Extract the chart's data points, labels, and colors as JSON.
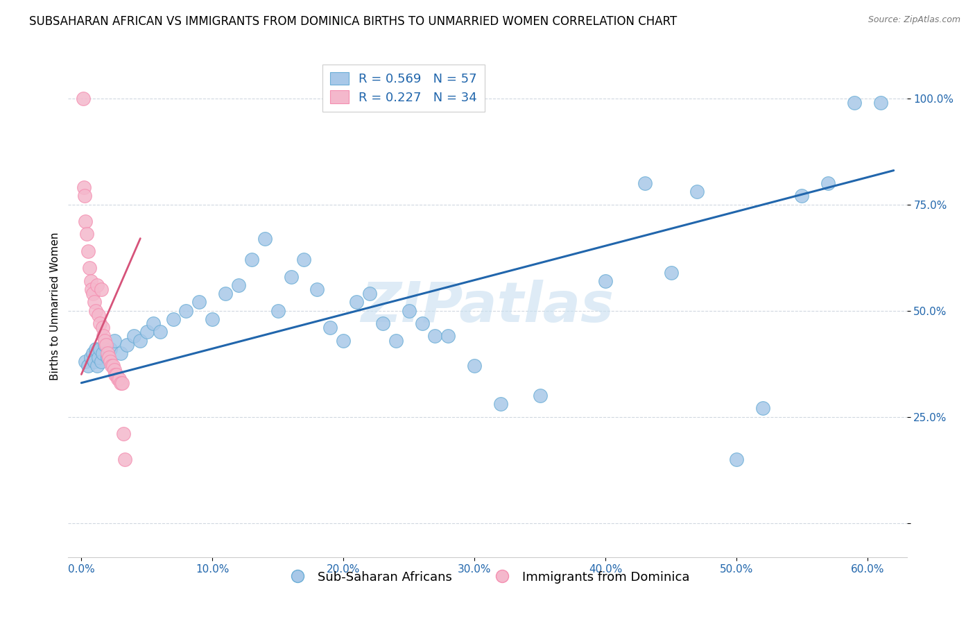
{
  "title": "SUBSAHARAN AFRICAN VS IMMIGRANTS FROM DOMINICA BIRTHS TO UNMARRIED WOMEN CORRELATION CHART",
  "source": "Source: ZipAtlas.com",
  "ylabel": "Births to Unmarried Women",
  "x_ticks": [
    0.0,
    10.0,
    20.0,
    30.0,
    40.0,
    50.0,
    60.0
  ],
  "y_ticks": [
    0.0,
    25.0,
    50.0,
    75.0,
    100.0
  ],
  "x_tick_labels": [
    "0.0%",
    "10.0%",
    "20.0%",
    "30.0%",
    "40.0%",
    "50.0%",
    "60.0%"
  ],
  "y_tick_labels": [
    "",
    "25.0%",
    "50.0%",
    "75.0%",
    "100.0%"
  ],
  "xlim": [
    -1.0,
    63.0
  ],
  "ylim": [
    -8.0,
    110.0
  ],
  "blue_color": "#a8c8e8",
  "blue_edge_color": "#6baed6",
  "pink_color": "#f4b8cc",
  "pink_edge_color": "#f48fb1",
  "blue_line_color": "#2166ac",
  "pink_line_color": "#d6537a",
  "legend_r1": "R = 0.569",
  "legend_n1": "N = 57",
  "legend_r2": "R = 0.227",
  "legend_n2": "N = 34",
  "legend_text_color": "#2166ac",
  "watermark": "ZIPatlas",
  "blue_scatter_x": [
    0.3,
    0.5,
    0.7,
    0.9,
    1.0,
    1.1,
    1.2,
    1.3,
    1.4,
    1.5,
    1.6,
    1.8,
    2.0,
    2.2,
    2.5,
    3.0,
    3.5,
    4.0,
    4.5,
    5.0,
    5.5,
    6.0,
    7.0,
    8.0,
    9.0,
    10.0,
    11.0,
    12.0,
    13.0,
    14.0,
    15.0,
    16.0,
    17.0,
    18.0,
    19.0,
    20.0,
    21.0,
    22.0,
    23.0,
    24.0,
    25.0,
    26.0,
    27.0,
    28.0,
    30.0,
    32.0,
    35.0,
    40.0,
    43.0,
    45.0,
    47.0,
    50.0,
    52.0,
    55.0,
    57.0,
    59.0,
    61.0
  ],
  "blue_scatter_y": [
    38.0,
    37.0,
    39.0,
    40.0,
    38.0,
    41.0,
    37.0,
    39.0,
    41.0,
    38.0,
    40.0,
    42.0,
    39.0,
    41.0,
    43.0,
    40.0,
    42.0,
    44.0,
    43.0,
    45.0,
    47.0,
    45.0,
    48.0,
    50.0,
    52.0,
    48.0,
    54.0,
    56.0,
    62.0,
    67.0,
    50.0,
    58.0,
    62.0,
    55.0,
    46.0,
    43.0,
    52.0,
    54.0,
    47.0,
    43.0,
    50.0,
    47.0,
    44.0,
    44.0,
    37.0,
    28.0,
    30.0,
    57.0,
    80.0,
    59.0,
    78.0,
    15.0,
    27.0,
    77.0,
    80.0,
    99.0,
    99.0
  ],
  "pink_scatter_x": [
    0.15,
    0.2,
    0.25,
    0.3,
    0.4,
    0.5,
    0.6,
    0.7,
    0.8,
    0.9,
    1.0,
    1.1,
    1.2,
    1.3,
    1.4,
    1.5,
    1.6,
    1.7,
    1.8,
    1.9,
    2.0,
    2.1,
    2.2,
    2.3,
    2.4,
    2.5,
    2.6,
    2.7,
    2.8,
    2.9,
    3.0,
    3.1,
    3.2,
    3.3
  ],
  "pink_scatter_y": [
    100.0,
    79.0,
    77.0,
    71.0,
    68.0,
    64.0,
    60.0,
    57.0,
    55.0,
    54.0,
    52.0,
    50.0,
    56.0,
    49.0,
    47.0,
    55.0,
    46.0,
    44.0,
    43.0,
    42.0,
    40.0,
    39.0,
    38.0,
    37.0,
    37.0,
    36.0,
    35.0,
    35.0,
    34.0,
    34.0,
    33.0,
    33.0,
    21.0,
    15.0
  ],
  "blue_trend_x": [
    0.0,
    62.0
  ],
  "blue_trend_y": [
    33.0,
    83.0
  ],
  "pink_trend_x": [
    0.0,
    4.5
  ],
  "pink_trend_y": [
    35.0,
    67.0
  ],
  "grid_color": "#d0d8e0",
  "grid_style": "--",
  "title_fontsize": 12,
  "tick_fontsize": 11,
  "axis_label_fontsize": 11,
  "legend_fontsize": 13,
  "watermark_fontsize": 58,
  "watermark_color": "#c8dff0",
  "watermark_alpha": 0.6
}
